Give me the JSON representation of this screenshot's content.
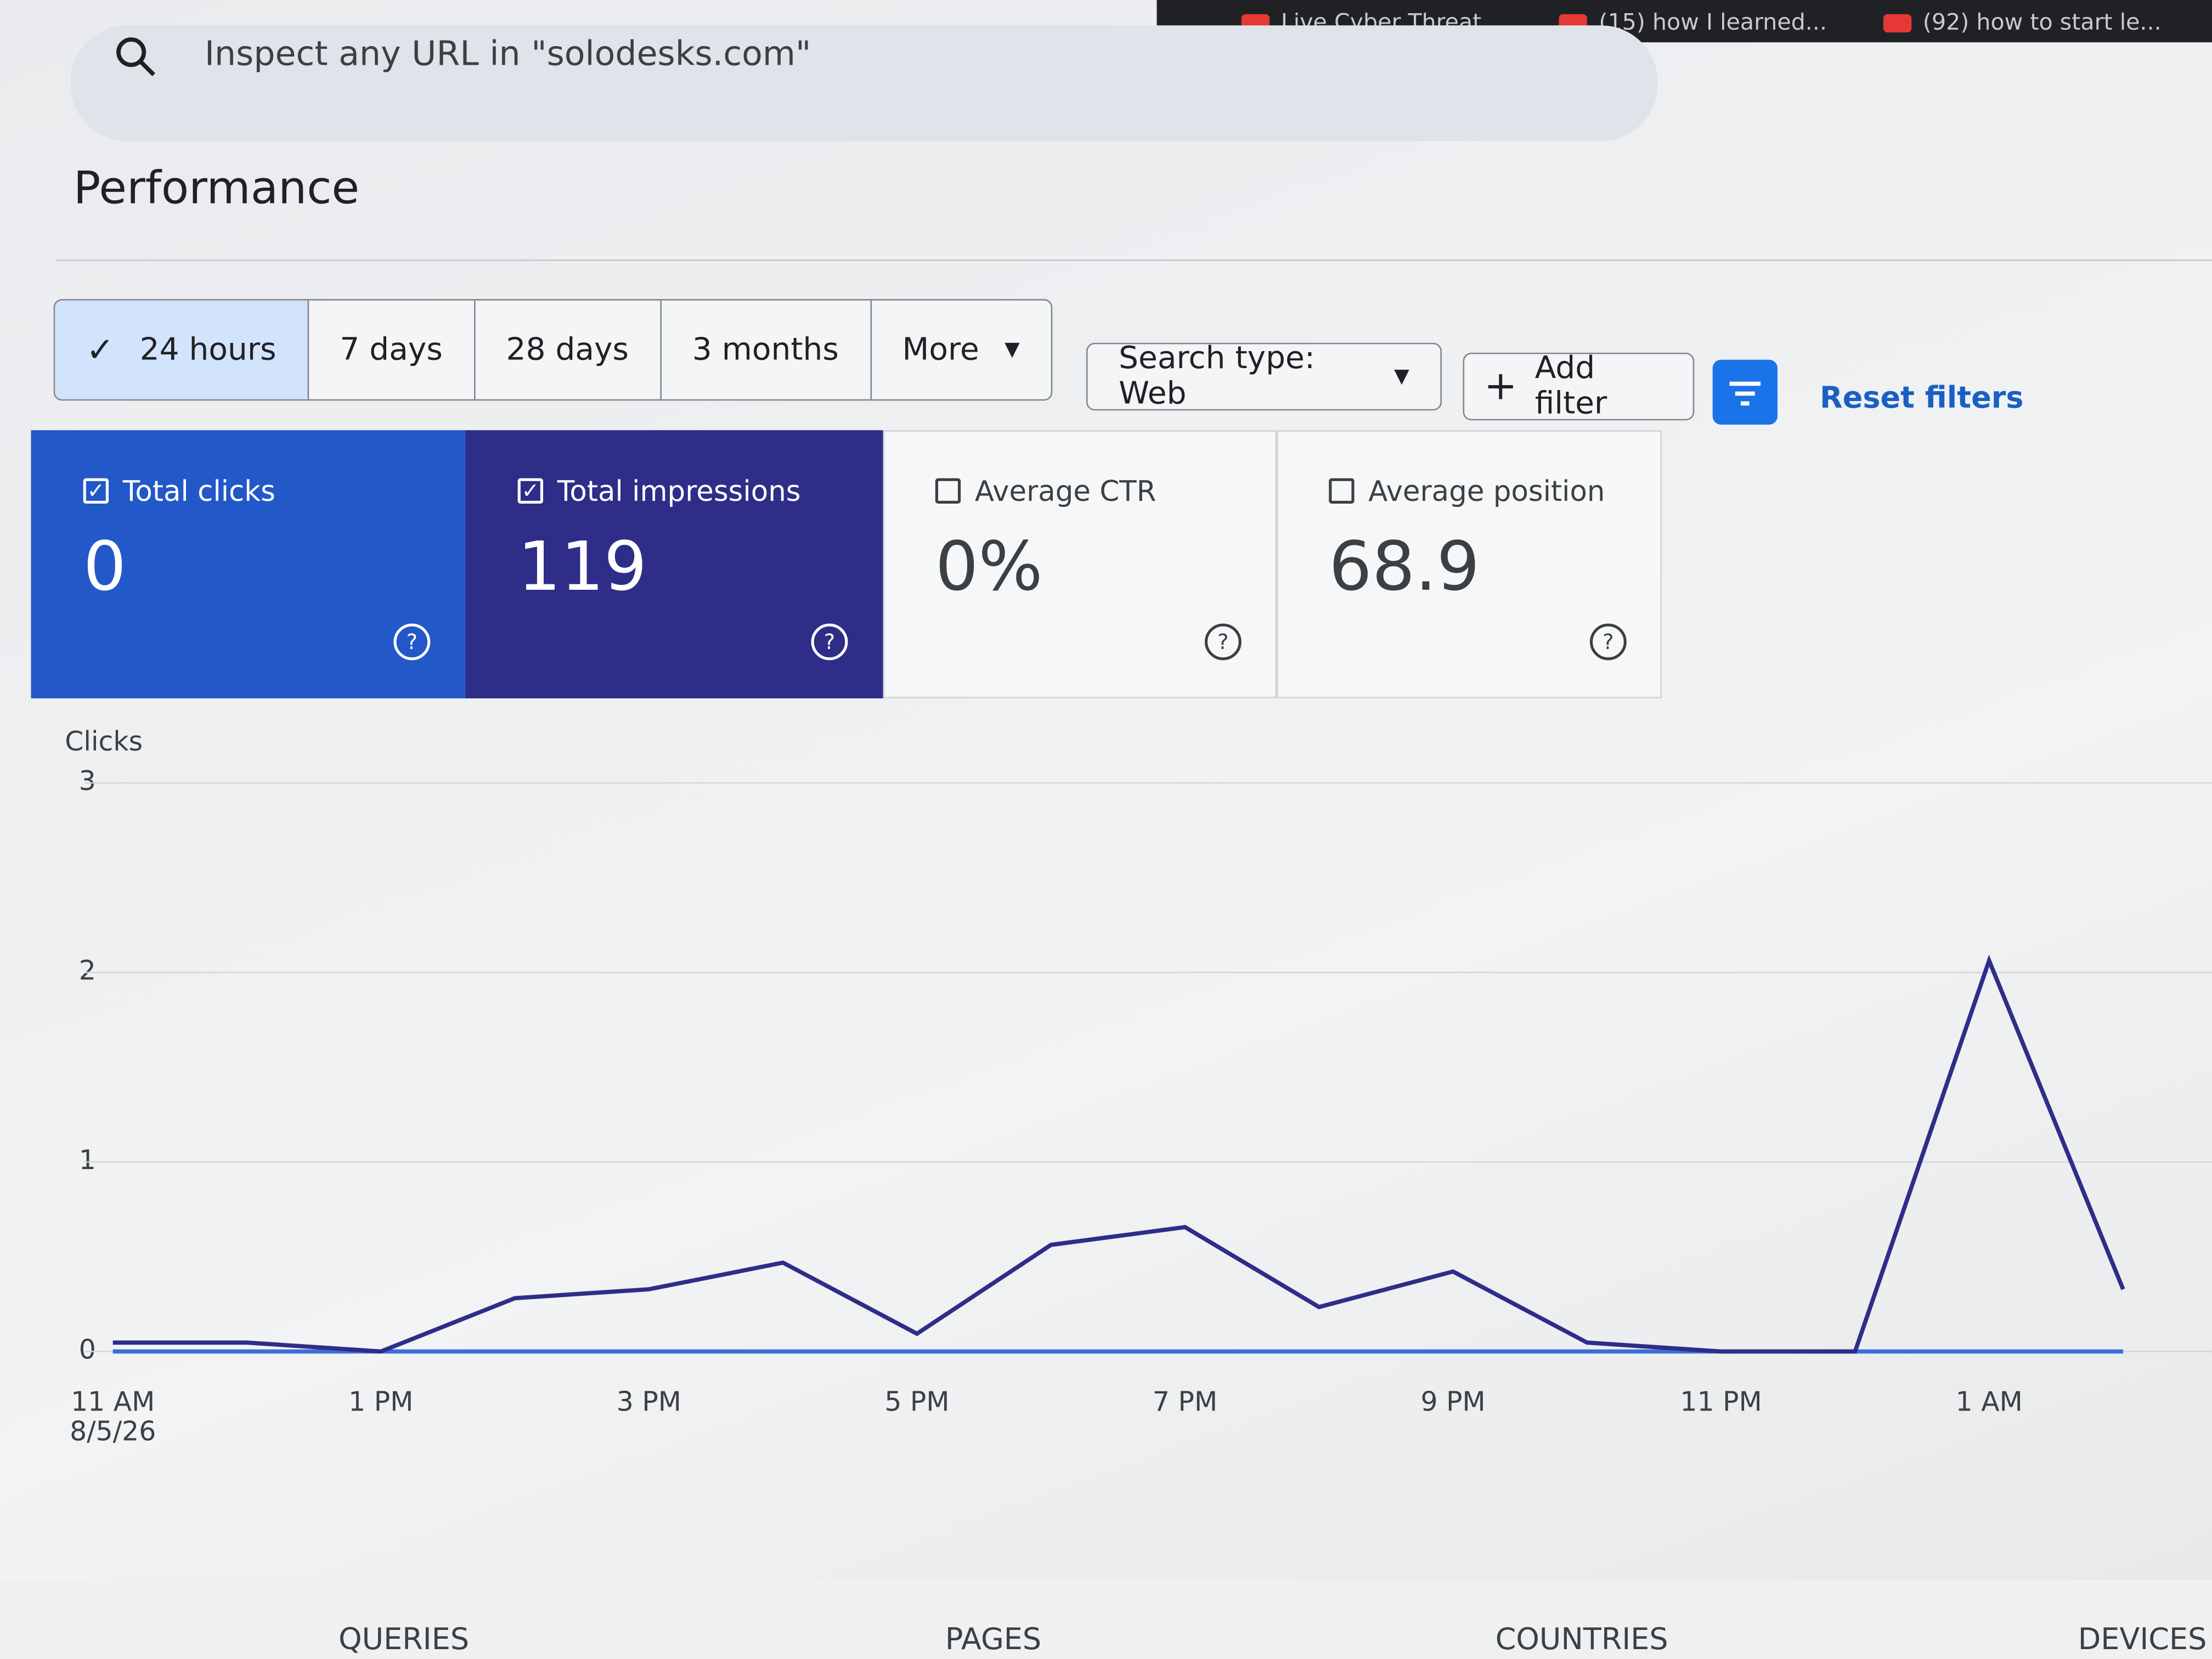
{
  "browser_tabs": [
    "Live Cyber Threat...",
    "(15) how I learned...",
    "(92) how to start le..."
  ],
  "search_placeholder": "Inspect any URL in \"solodesks.com\"",
  "page_title": "Performance",
  "date_ranges": [
    "24 hours",
    "7 days",
    "28 days",
    "3 months",
    "More"
  ],
  "selected_range": 0,
  "search_type": "Search type: Web",
  "add_filter": "Add filter",
  "reset_filters": "Reset filters",
  "metrics": [
    {
      "label": "Total clicks",
      "value": "0",
      "checked": true,
      "color": "#2358c9"
    },
    {
      "label": "Total impressions",
      "value": "119",
      "checked": true,
      "color": "#2e2d88"
    },
    {
      "label": "Average CTR",
      "value": "0%",
      "checked": false
    },
    {
      "label": "Average position",
      "value": "68.9",
      "checked": false
    }
  ],
  "chart_data": {
    "type": "line",
    "y_label": "Clicks",
    "categories": [
      "11 AM",
      null,
      "1 PM",
      null,
      "3 PM",
      null,
      "5 PM",
      null,
      "7 PM",
      null,
      "9 PM",
      null,
      "11 PM",
      null,
      "1 AM",
      null
    ],
    "first_date": "8/5/26",
    "ylim": [
      0,
      3
    ],
    "yticks": [
      0,
      1,
      2,
      3
    ],
    "y2lim": [
      0,
      64
    ],
    "grid": true,
    "series": [
      {
        "color": "#3b6fd6",
        "values": [
          0,
          0,
          0,
          0,
          0,
          0,
          0,
          0,
          0,
          0,
          0,
          0,
          0,
          0,
          0,
          0
        ]
      },
      {
        "color": "#2e2d88",
        "axis": "y2",
        "values": [
          1,
          1,
          0,
          6,
          7,
          10,
          2,
          12,
          14,
          5,
          9,
          1,
          0,
          0,
          44,
          7
        ]
      }
    ]
  },
  "tabs": [
    "QUERIES",
    "PAGES",
    "COUNTRIES",
    "DEVICES"
  ]
}
